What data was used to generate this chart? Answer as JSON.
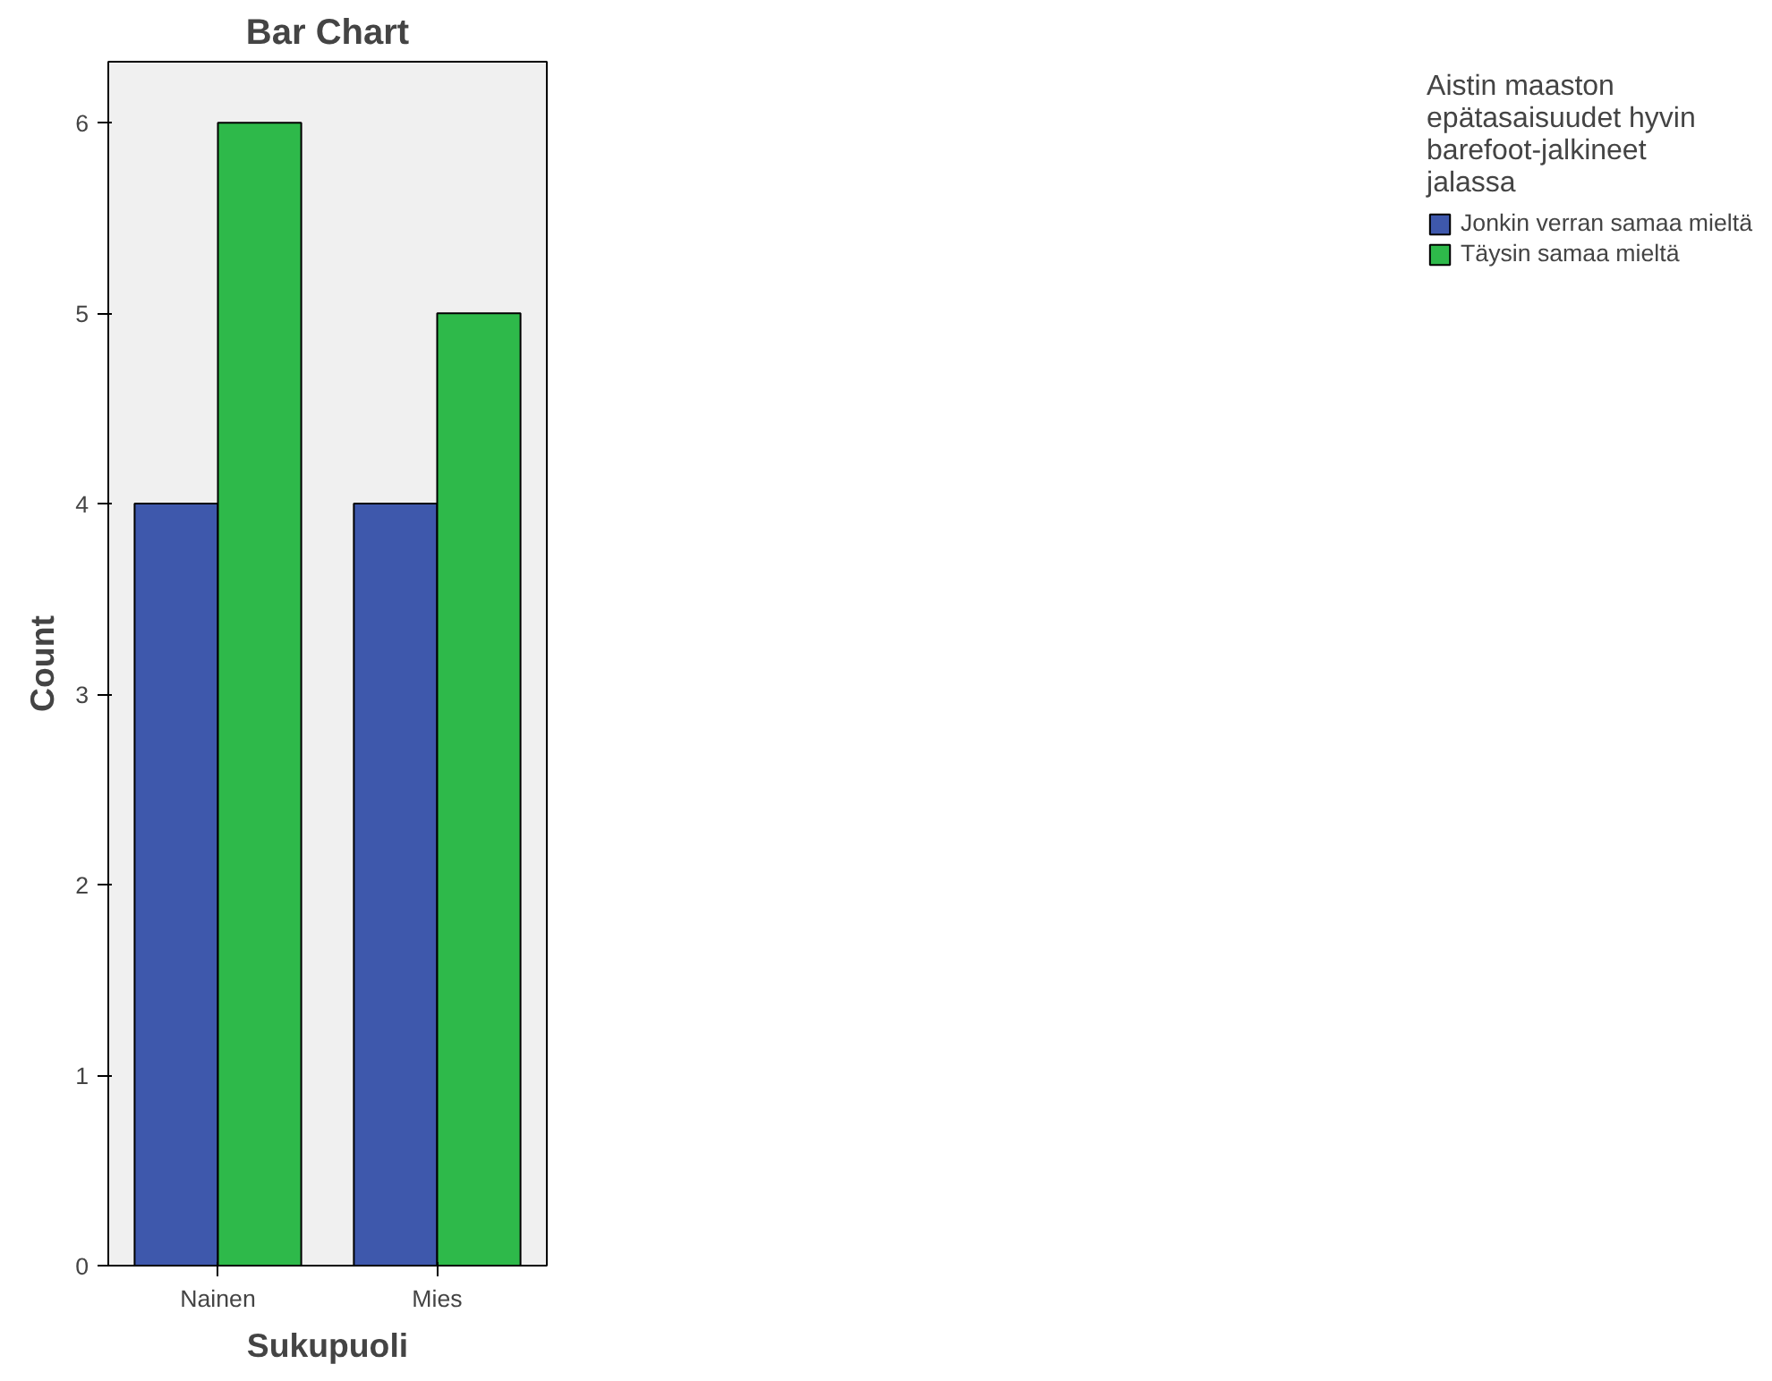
{
  "chart_data": {
    "type": "bar",
    "title": "Bar Chart",
    "xlabel": "Sukupuoli",
    "ylabel": "Count",
    "legend_title": "Aistin maaston epätasaisuudet hyvin barefoot-jalkineet jalassa",
    "categories": [
      "Nainen",
      "Mies"
    ],
    "series": [
      {
        "name": "Jonkin verran samaa mieltä",
        "color": "#3e58ac",
        "values": [
          4,
          4
        ]
      },
      {
        "name": "Täysin samaa mieltä",
        "color": "#2eb94a",
        "values": [
          6,
          5
        ]
      }
    ],
    "ylim": [
      0,
      6.32
    ],
    "yticks": [
      0,
      1,
      2,
      3,
      4,
      5,
      6
    ],
    "grid": false,
    "legend": "right"
  }
}
